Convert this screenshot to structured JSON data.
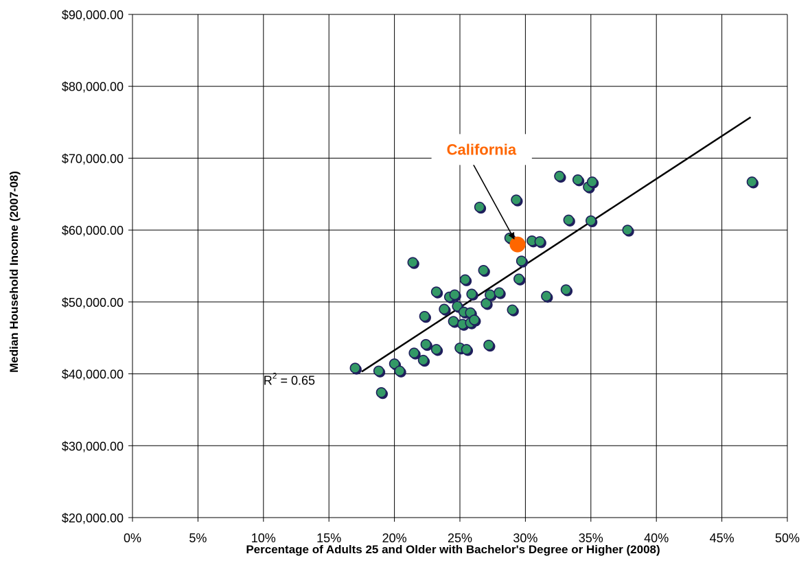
{
  "chart_data": {
    "type": "scatter",
    "title": "",
    "xlabel": "Percentage of Adults 25 and Older with Bachelor's Degree or Higher (2008)",
    "ylabel": "Median Household Income (2007-08)",
    "xlim": [
      0,
      50
    ],
    "ylim": [
      20000,
      90000
    ],
    "x_tick_labels": [
      "0%",
      "5%",
      "10%",
      "15%",
      "20%",
      "25%",
      "30%",
      "35%",
      "40%",
      "45%",
      "50%"
    ],
    "y_tick_labels": [
      "$20,000.00",
      "$30,000.00",
      "$40,000.00",
      "$50,000.00",
      "$60,000.00",
      "$70,000.00",
      "$80,000.00",
      "$90,000.00"
    ],
    "grid": true,
    "legend": "none",
    "point_color": "#339966",
    "point_outline_color": "#1f1f5c",
    "highlight_color": "#ff6600",
    "series": [
      {
        "points": [
          {
            "x": 17.0,
            "y": 40800
          },
          {
            "x": 18.8,
            "y": 40400
          },
          {
            "x": 19.0,
            "y": 37400
          },
          {
            "x": 20.0,
            "y": 41400
          },
          {
            "x": 20.4,
            "y": 40400
          },
          {
            "x": 21.4,
            "y": 55500
          },
          {
            "x": 21.5,
            "y": 42900
          },
          {
            "x": 22.2,
            "y": 41900
          },
          {
            "x": 22.3,
            "y": 48000
          },
          {
            "x": 22.4,
            "y": 44100
          },
          {
            "x": 23.2,
            "y": 51400
          },
          {
            "x": 23.2,
            "y": 43400
          },
          {
            "x": 23.8,
            "y": 49000
          },
          {
            "x": 24.2,
            "y": 50700
          },
          {
            "x": 24.5,
            "y": 47300
          },
          {
            "x": 24.6,
            "y": 51000
          },
          {
            "x": 24.8,
            "y": 49400
          },
          {
            "x": 25.0,
            "y": 43600
          },
          {
            "x": 25.2,
            "y": 46900
          },
          {
            "x": 25.3,
            "y": 48600
          },
          {
            "x": 25.4,
            "y": 53100
          },
          {
            "x": 25.5,
            "y": 43400
          },
          {
            "x": 25.8,
            "y": 47100
          },
          {
            "x": 25.8,
            "y": 48500
          },
          {
            "x": 25.9,
            "y": 51100
          },
          {
            "x": 26.1,
            "y": 47500
          },
          {
            "x": 26.5,
            "y": 63200
          },
          {
            "x": 26.8,
            "y": 54400
          },
          {
            "x": 27.0,
            "y": 49800
          },
          {
            "x": 27.2,
            "y": 44000
          },
          {
            "x": 27.3,
            "y": 51000
          },
          {
            "x": 28.0,
            "y": 51300
          },
          {
            "x": 28.8,
            "y": 58900
          },
          {
            "x": 29.0,
            "y": 48900
          },
          {
            "x": 29.3,
            "y": 64200
          },
          {
            "x": 29.5,
            "y": 53200
          },
          {
            "x": 29.7,
            "y": 55700
          },
          {
            "x": 30.5,
            "y": 58500
          },
          {
            "x": 31.1,
            "y": 58400
          },
          {
            "x": 31.6,
            "y": 50800
          },
          {
            "x": 32.6,
            "y": 67500
          },
          {
            "x": 33.1,
            "y": 51700
          },
          {
            "x": 33.3,
            "y": 61400
          },
          {
            "x": 34.0,
            "y": 67000
          },
          {
            "x": 34.8,
            "y": 66000
          },
          {
            "x": 35.0,
            "y": 61300
          },
          {
            "x": 35.1,
            "y": 66700
          },
          {
            "x": 37.8,
            "y": 60000
          },
          {
            "x": 47.3,
            "y": 66700
          }
        ]
      }
    ],
    "highlight_point": {
      "label": "California",
      "x": 29.4,
      "y": 58000
    },
    "trendline": {
      "x": [
        17.5,
        47.2
      ],
      "y": [
        40300,
        75700
      ]
    },
    "r2_label": {
      "base": "R",
      "sup": "2",
      "value": " = 0.65",
      "x": 10.0,
      "y": 38500
    },
    "annotation_anchor": {
      "x": 25.7,
      "y": 70200
    }
  }
}
